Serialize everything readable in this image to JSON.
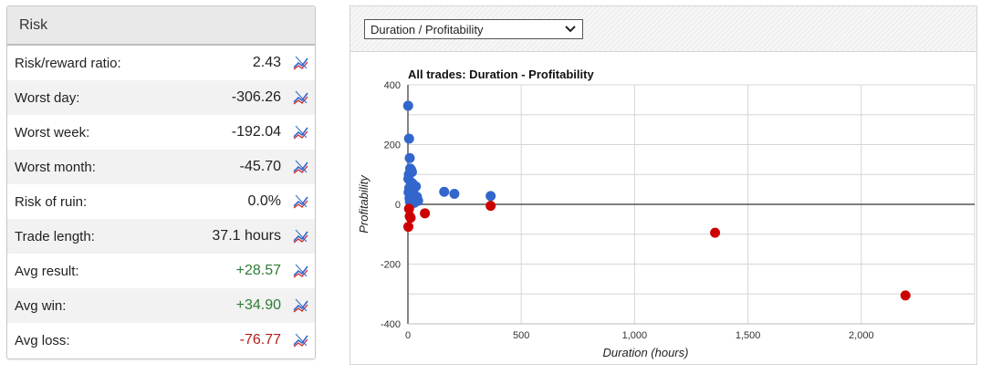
{
  "risk": {
    "title": "Risk",
    "rows": [
      {
        "label": "Risk/reward ratio:",
        "value": "2.43",
        "tone": ""
      },
      {
        "label": "Worst day:",
        "value": "-306.26",
        "tone": ""
      },
      {
        "label": "Worst week:",
        "value": "-192.04",
        "tone": ""
      },
      {
        "label": "Worst month:",
        "value": "-45.70",
        "tone": ""
      },
      {
        "label": "Risk of ruin:",
        "value": "0.0%",
        "tone": ""
      },
      {
        "label": "Trade length:",
        "value": "37.1 hours",
        "tone": ""
      },
      {
        "label": "Avg result:",
        "value": "+28.57",
        "tone": "pos"
      },
      {
        "label": "Avg win:",
        "value": "+34.90",
        "tone": "pos"
      },
      {
        "label": "Avg loss:",
        "value": "-76.77",
        "tone": "neg"
      }
    ]
  },
  "chart_panel": {
    "select_value": "Duration / Profitability"
  },
  "chart_data": {
    "type": "scatter",
    "title": "All trades: Duration - Profitability",
    "xlabel": "Duration (hours)",
    "ylabel": "Profitability",
    "xlim": [
      0,
      2500
    ],
    "ylim": [
      -400,
      400
    ],
    "x_ticks": [
      0,
      500,
      1000,
      1500,
      2000
    ],
    "x_tick_labels": [
      "0",
      "500",
      "1,000",
      "1,500",
      "2,000"
    ],
    "y_ticks": [
      -400,
      -200,
      0,
      200,
      400
    ],
    "y_tick_labels": [
      "-400",
      "-200",
      "0",
      "200",
      "400"
    ],
    "grid": true,
    "series": [
      {
        "color": "#3366cc",
        "points": [
          [
            1,
            330
          ],
          [
            5,
            220
          ],
          [
            8,
            155
          ],
          [
            10,
            120
          ],
          [
            15,
            115
          ],
          [
            18,
            108
          ],
          [
            4,
            100
          ],
          [
            2,
            85
          ],
          [
            12,
            75
          ],
          [
            20,
            70
          ],
          [
            35,
            60
          ],
          [
            6,
            55
          ],
          [
            25,
            50
          ],
          [
            3,
            40
          ],
          [
            14,
            35
          ],
          [
            30,
            30
          ],
          [
            40,
            25
          ],
          [
            7,
            20
          ],
          [
            22,
            15
          ],
          [
            45,
            12
          ],
          [
            9,
            8
          ],
          [
            28,
            5
          ],
          [
            16,
            3
          ],
          [
            160,
            42
          ],
          [
            205,
            35
          ],
          [
            365,
            28
          ]
        ]
      },
      {
        "color": "#cc0000",
        "points": [
          [
            5,
            -15
          ],
          [
            8,
            -40
          ],
          [
            12,
            -45
          ],
          [
            2,
            -75
          ],
          [
            75,
            -30
          ],
          [
            365,
            -5
          ],
          [
            1355,
            -95
          ],
          [
            2195,
            -305
          ]
        ]
      }
    ]
  }
}
